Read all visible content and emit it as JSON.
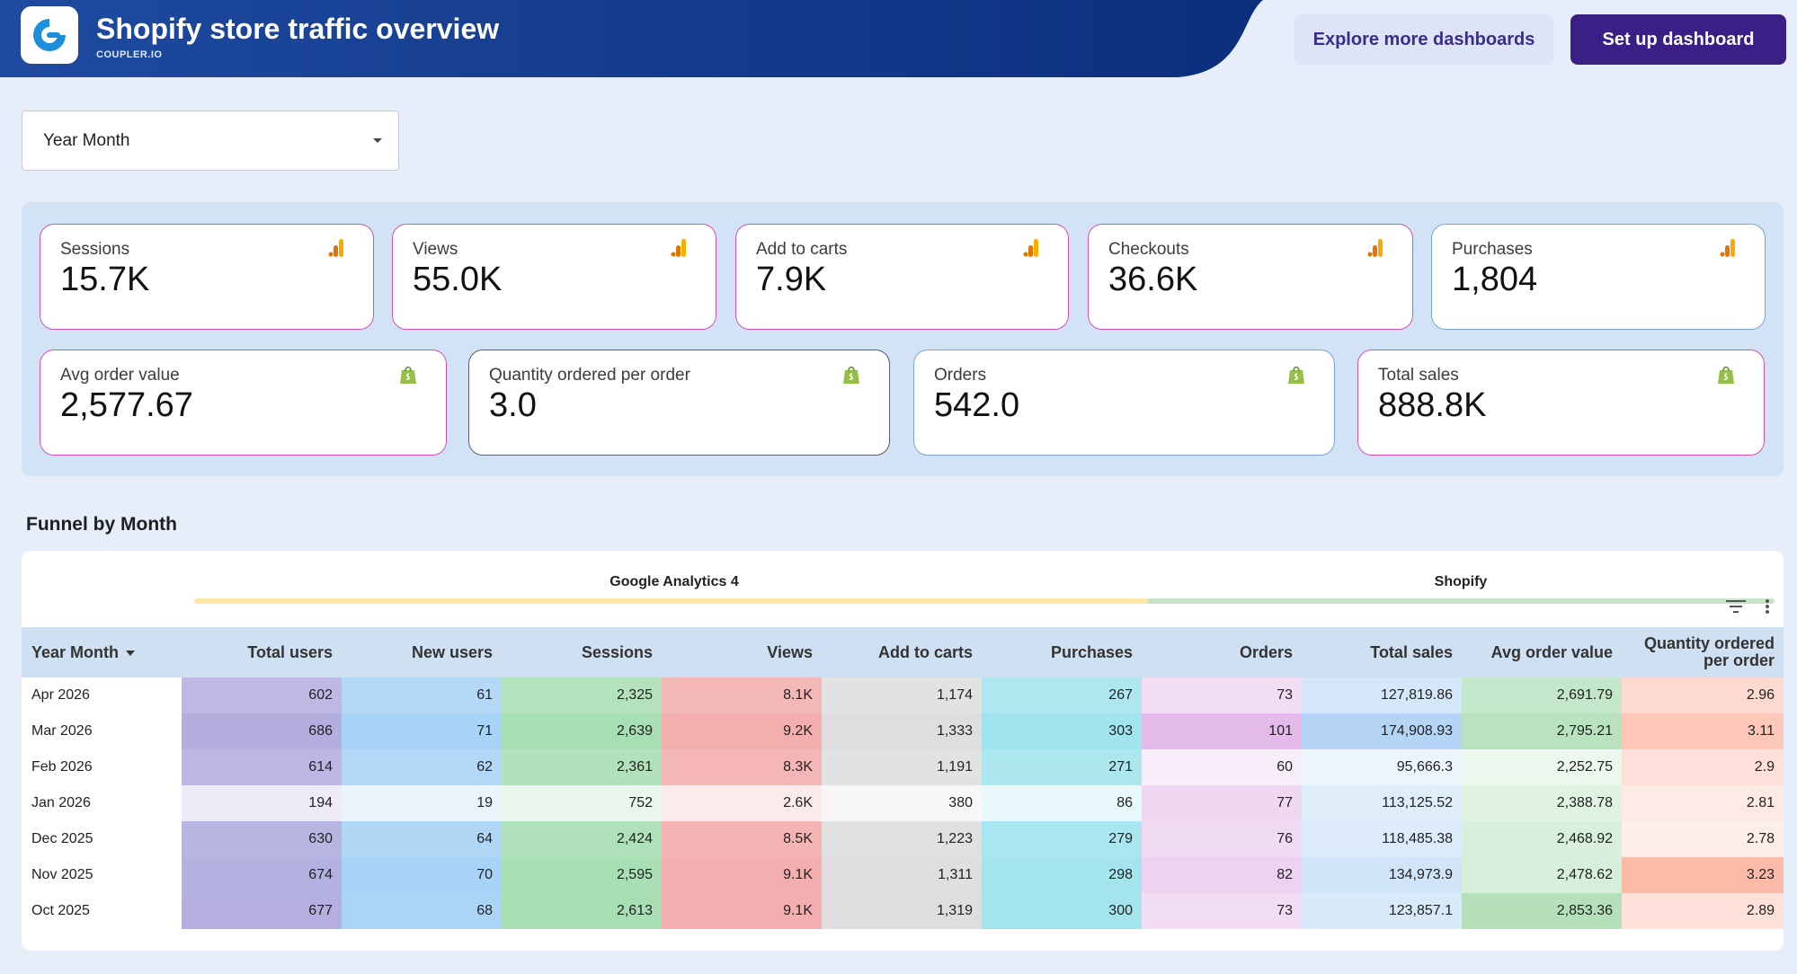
{
  "header": {
    "title": "Shopify store traffic overview",
    "subtitle": "COUPLER.IO",
    "explore_label": "Explore more dashboards",
    "setup_label": "Set up dashboard"
  },
  "filter": {
    "label": "Year Month"
  },
  "kpis_row1": [
    {
      "label": "Sessions",
      "value": "15.7K",
      "icon": "google-analytics-icon"
    },
    {
      "label": "Views",
      "value": "55.0K",
      "icon": "google-analytics-icon"
    },
    {
      "label": "Add to carts",
      "value": "7.9K",
      "icon": "google-analytics-icon"
    },
    {
      "label": "Checkouts",
      "value": "36.6K",
      "icon": "google-analytics-icon"
    },
    {
      "label": "Purchases",
      "value": "1,804",
      "icon": "google-analytics-icon"
    }
  ],
  "kpis_row2": [
    {
      "label": "Avg order value",
      "value": "2,577.67",
      "icon": "shopify-bag-icon"
    },
    {
      "label": "Quantity ordered per order",
      "value": "3.0",
      "icon": "shopify-bag-icon"
    },
    {
      "label": "Orders",
      "value": "542.0",
      "icon": "shopify-bag-icon"
    },
    {
      "label": "Total sales",
      "value": "888.8K",
      "icon": "shopify-bag-icon"
    }
  ],
  "funnel": {
    "title": "Funnel by Month",
    "groups": [
      {
        "label": "Google Analytics 4",
        "color": "#fbe7a6"
      },
      {
        "label": "Shopify",
        "color": "#c7e4c8"
      }
    ],
    "columns": [
      "Year Month",
      "Total users",
      "New users",
      "Sessions",
      "Views",
      "Add to carts",
      "Purchases",
      "Orders",
      "Total sales",
      "Avg order value",
      "Quantity ordered per order"
    ],
    "rows": [
      [
        "Apr 2026",
        "602",
        "61",
        "2,325",
        "8.1K",
        "1,174",
        "267",
        "73",
        "127,819.86",
        "2,691.79",
        "2.96"
      ],
      [
        "Mar 2026",
        "686",
        "71",
        "2,639",
        "9.2K",
        "1,333",
        "303",
        "101",
        "174,908.93",
        "2,795.21",
        "3.11"
      ],
      [
        "Feb 2026",
        "614",
        "62",
        "2,361",
        "8.3K",
        "1,191",
        "271",
        "60",
        "95,666.3",
        "2,252.75",
        "2.9"
      ],
      [
        "Jan 2026",
        "194",
        "19",
        "752",
        "2.6K",
        "380",
        "86",
        "77",
        "113,125.52",
        "2,388.78",
        "2.81"
      ],
      [
        "Dec 2025",
        "630",
        "64",
        "2,424",
        "8.5K",
        "1,223",
        "279",
        "76",
        "118,485.38",
        "2,468.92",
        "2.78"
      ],
      [
        "Nov 2025",
        "674",
        "70",
        "2,595",
        "9.1K",
        "1,311",
        "298",
        "82",
        "134,973.9",
        "2,478.62",
        "3.23"
      ],
      [
        "Oct 2025",
        "677",
        "68",
        "2,613",
        "9.1K",
        "1,319",
        "300",
        "73",
        "123,857.1",
        "2,853.36",
        "2.89"
      ]
    ]
  }
}
